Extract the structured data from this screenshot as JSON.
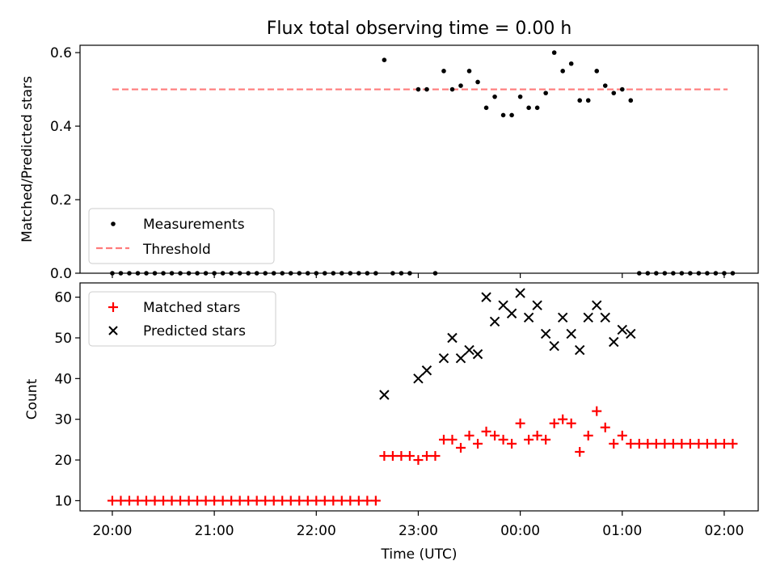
{
  "chart_data": [
    {
      "type": "scatter",
      "title": "Flux total observing time = 0.00 h",
      "xlabel": "",
      "ylabel": "Matched/Predicted stars",
      "xlim": [
        "19:41",
        "02:20"
      ],
      "ylim": [
        0,
        0.62
      ],
      "yticks": [
        "0.0",
        "0.2",
        "0.4",
        "0.6"
      ],
      "legend": {
        "placement": "lower-left",
        "entries": [
          "Measurements",
          "Threshold"
        ]
      },
      "threshold": {
        "name": "Threshold",
        "value": 0.5,
        "color": "#ff7b7b",
        "x": [
          "20:00",
          "02:02"
        ]
      },
      "series": [
        {
          "name": "Measurements",
          "color": "#000000",
          "x": [
            "20:00",
            "20:05",
            "20:10",
            "20:15",
            "20:20",
            "20:25",
            "20:30",
            "20:35",
            "20:40",
            "20:45",
            "20:50",
            "20:55",
            "21:00",
            "21:05",
            "21:10",
            "21:15",
            "21:20",
            "21:25",
            "21:30",
            "21:35",
            "21:40",
            "21:45",
            "21:50",
            "21:55",
            "22:00",
            "22:05",
            "22:10",
            "22:15",
            "22:20",
            "22:25",
            "22:30",
            "22:35",
            "22:40",
            "22:45",
            "22:50",
            "22:55",
            "23:00",
            "23:05",
            "23:10",
            "23:15",
            "23:20",
            "23:25",
            "23:30",
            "23:35",
            "23:40",
            "23:45",
            "23:50",
            "23:55",
            "00:00",
            "00:05",
            "00:10",
            "00:15",
            "00:20",
            "00:25",
            "00:30",
            "00:35",
            "00:40",
            "00:45",
            "00:50",
            "00:55",
            "01:00",
            "01:05",
            "01:10",
            "01:15",
            "01:20",
            "01:25",
            "01:30",
            "01:35",
            "01:40",
            "01:45",
            "01:50",
            "01:55",
            "02:00",
            "02:05"
          ],
          "y": [
            0,
            0,
            0,
            0,
            0,
            0,
            0,
            0,
            0,
            0,
            0,
            0,
            0,
            0,
            0,
            0,
            0,
            0,
            0,
            0,
            0,
            0,
            0,
            0,
            0,
            0,
            0,
            0,
            0,
            0,
            0,
            0,
            0.58,
            0,
            0,
            0,
            0.5,
            0.5,
            0,
            0.55,
            0.5,
            0.51,
            0.55,
            0.52,
            0.45,
            0.48,
            0.43,
            0.43,
            0.48,
            0.45,
            0.45,
            0.49,
            0.6,
            0.55,
            0.57,
            0.47,
            0.47,
            0.55,
            0.51,
            0.49,
            0.5,
            0.47,
            0,
            0,
            0,
            0,
            0,
            0,
            0,
            0,
            0,
            0,
            0,
            0
          ]
        }
      ]
    },
    {
      "type": "scatter",
      "title": "",
      "xlabel": "Time (UTC)",
      "ylabel": "Count",
      "xlim": [
        "19:41",
        "02:20"
      ],
      "ylim": [
        7.5,
        63.5
      ],
      "yticks": [
        "10",
        "20",
        "30",
        "40",
        "50",
        "60"
      ],
      "xticks": [
        "20:00",
        "21:00",
        "22:00",
        "23:00",
        "00:00",
        "01:00",
        "02:00"
      ],
      "legend": {
        "placement": "top-left",
        "entries": [
          "Matched stars",
          "Predicted stars"
        ]
      },
      "series": [
        {
          "name": "Matched stars",
          "color": "#ff0000",
          "marker": "plus",
          "x": [
            "20:00",
            "20:05",
            "20:10",
            "20:15",
            "20:20",
            "20:25",
            "20:30",
            "20:35",
            "20:40",
            "20:45",
            "20:50",
            "20:55",
            "21:00",
            "21:05",
            "21:10",
            "21:15",
            "21:20",
            "21:25",
            "21:30",
            "21:35",
            "21:40",
            "21:45",
            "21:50",
            "21:55",
            "22:00",
            "22:05",
            "22:10",
            "22:15",
            "22:20",
            "22:25",
            "22:30",
            "22:35",
            "22:40",
            "22:45",
            "22:50",
            "22:55",
            "23:00",
            "23:05",
            "23:10",
            "23:15",
            "23:20",
            "23:25",
            "23:30",
            "23:35",
            "23:40",
            "23:45",
            "23:50",
            "23:55",
            "00:00",
            "00:05",
            "00:10",
            "00:15",
            "00:20",
            "00:25",
            "00:30",
            "00:35",
            "00:40",
            "00:45",
            "00:50",
            "00:55",
            "01:00",
            "01:05",
            "01:10",
            "01:15",
            "01:20",
            "01:25",
            "01:30",
            "01:35",
            "01:40",
            "01:45",
            "01:50",
            "01:55",
            "02:00",
            "02:05"
          ],
          "y": [
            10,
            10,
            10,
            10,
            10,
            10,
            10,
            10,
            10,
            10,
            10,
            10,
            10,
            10,
            10,
            10,
            10,
            10,
            10,
            10,
            10,
            10,
            10,
            10,
            10,
            10,
            10,
            10,
            10,
            10,
            10,
            10,
            21,
            21,
            21,
            21,
            20,
            21,
            21,
            25,
            25,
            23,
            26,
            24,
            27,
            26,
            25,
            24,
            29,
            25,
            26,
            25,
            29,
            30,
            29,
            22,
            26,
            32,
            28,
            24,
            26,
            24,
            24,
            24,
            24,
            24,
            24,
            24,
            24,
            24,
            24,
            24,
            24,
            24
          ]
        },
        {
          "name": "Predicted stars",
          "color": "#000000",
          "marker": "x",
          "x": [
            "22:40",
            "23:00",
            "23:05",
            "23:15",
            "23:20",
            "23:25",
            "23:30",
            "23:35",
            "23:40",
            "23:45",
            "23:50",
            "23:55",
            "00:00",
            "00:05",
            "00:10",
            "00:15",
            "00:20",
            "00:25",
            "00:30",
            "00:35",
            "00:40",
            "00:45",
            "00:50",
            "00:55",
            "01:00",
            "01:05"
          ],
          "y": [
            36,
            40,
            42,
            45,
            50,
            45,
            47,
            46,
            60,
            54,
            58,
            56,
            61,
            55,
            58,
            51,
            48,
            55,
            51,
            47,
            55,
            58,
            55,
            49,
            52,
            51
          ]
        }
      ]
    }
  ]
}
